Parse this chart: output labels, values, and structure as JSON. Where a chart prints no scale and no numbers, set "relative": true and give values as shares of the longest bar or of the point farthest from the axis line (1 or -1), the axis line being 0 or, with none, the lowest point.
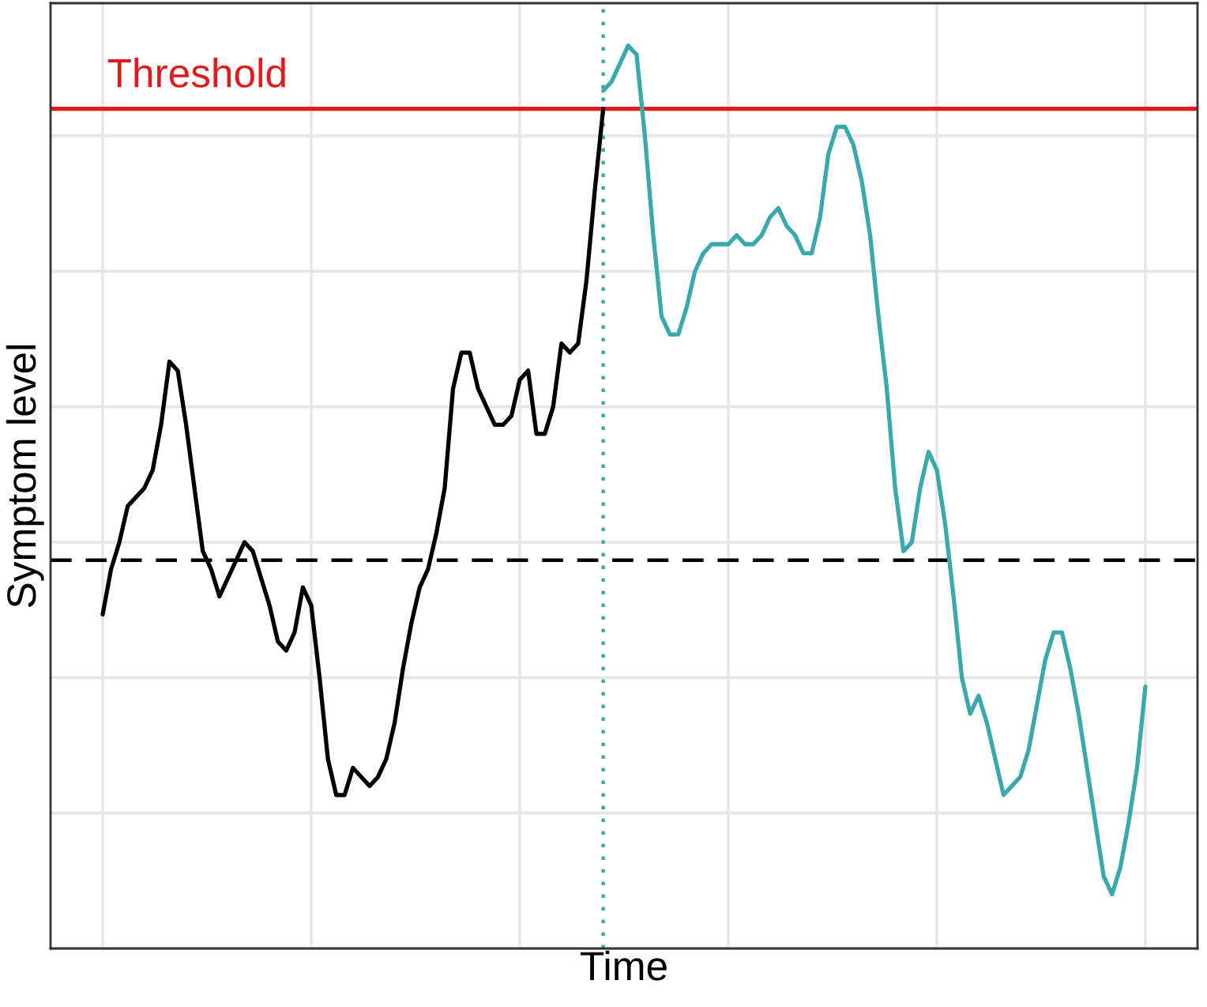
{
  "chart_data": {
    "type": "line",
    "xlabel": "Time",
    "ylabel": "Symptom level",
    "relative": true,
    "categories": [
      null,
      null,
      null,
      null,
      null,
      null,
      null,
      null,
      null,
      null,
      null,
      null,
      null,
      null,
      null,
      null,
      null,
      null,
      null,
      null,
      null,
      null,
      null,
      null,
      null,
      null,
      null,
      null,
      null,
      null,
      null,
      null,
      null,
      null,
      null,
      null,
      null,
      null,
      null,
      null,
      null,
      null,
      null,
      null,
      null,
      null,
      null,
      null,
      null,
      null,
      null,
      null,
      null,
      null,
      null,
      null,
      null,
      null,
      null,
      null,
      null,
      null,
      null,
      null,
      null,
      null,
      null,
      null,
      null,
      null,
      null,
      null,
      null,
      null,
      null,
      null,
      null,
      null,
      null,
      null,
      null,
      null,
      null,
      null,
      null,
      null,
      null,
      null,
      null,
      null,
      null,
      null,
      null,
      null,
      null,
      null,
      null,
      null,
      null,
      null,
      null,
      null,
      null,
      null,
      null,
      null,
      null,
      null,
      null,
      null,
      null,
      null,
      null,
      null,
      null,
      null,
      null,
      null,
      null,
      null,
      null,
      null,
      null,
      null,
      null,
      null
    ],
    "series": [
      {
        "color": "#000000",
        "values": [
          0.37,
          0.42,
          0.45,
          0.49,
          0.5,
          0.51,
          0.53,
          0.58,
          0.65,
          0.64,
          0.58,
          0.51,
          0.44,
          0.42,
          0.39,
          0.41,
          0.43,
          0.45,
          0.44,
          0.41,
          0.38,
          0.34,
          0.33,
          0.35,
          0.4,
          0.38,
          0.3,
          0.21,
          0.17,
          0.17,
          0.2,
          0.19,
          0.18,
          0.19,
          0.21,
          0.25,
          0.31,
          0.36,
          0.4,
          0.42,
          0.46,
          0.51,
          0.62,
          0.66,
          0.66,
          0.62,
          0.6,
          0.58,
          0.58,
          0.59,
          0.63,
          0.64,
          0.57,
          0.57,
          0.6,
          0.67,
          0.66,
          0.67,
          0.74,
          0.84,
          0.93,
          null,
          null,
          null,
          null,
          null,
          null,
          null,
          null,
          null,
          null,
          null,
          null,
          null,
          null,
          null,
          null,
          null,
          null,
          null,
          null,
          null,
          null,
          null,
          null,
          null,
          null,
          null,
          null,
          null,
          null,
          null,
          null,
          null,
          null,
          null,
          null,
          null,
          null,
          null,
          null,
          null,
          null,
          null,
          null,
          null,
          null,
          null,
          null,
          null,
          null,
          null,
          null,
          null,
          null,
          null,
          null,
          null,
          null,
          null,
          null,
          null,
          null,
          null,
          null,
          null
        ]
      },
      {
        "color": "#3aa9ad",
        "values": [
          null,
          null,
          null,
          null,
          null,
          null,
          null,
          null,
          null,
          null,
          null,
          null,
          null,
          null,
          null,
          null,
          null,
          null,
          null,
          null,
          null,
          null,
          null,
          null,
          null,
          null,
          null,
          null,
          null,
          null,
          null,
          null,
          null,
          null,
          null,
          null,
          null,
          null,
          null,
          null,
          null,
          null,
          null,
          null,
          null,
          null,
          null,
          null,
          null,
          null,
          null,
          null,
          null,
          null,
          null,
          null,
          null,
          null,
          null,
          null,
          0.95,
          0.96,
          0.98,
          1.0,
          0.99,
          0.9,
          0.79,
          0.7,
          0.68,
          0.68,
          0.71,
          0.75,
          0.77,
          0.78,
          0.78,
          0.78,
          0.79,
          0.78,
          0.78,
          0.79,
          0.81,
          0.82,
          0.8,
          0.79,
          0.77,
          0.77,
          0.81,
          0.88,
          0.91,
          0.91,
          0.89,
          0.85,
          0.79,
          0.7,
          0.62,
          0.51,
          0.44,
          0.45,
          0.51,
          0.55,
          0.53,
          0.47,
          0.39,
          0.3,
          0.26,
          0.28,
          0.25,
          0.21,
          0.17,
          0.18,
          0.19,
          0.22,
          0.27,
          0.32,
          0.35,
          0.35,
          0.31,
          0.26,
          0.2,
          0.14,
          0.08,
          0.06,
          0.09,
          0.14,
          0.2,
          0.29
        ]
      }
    ],
    "ref_lines": [
      {
        "axis": "y",
        "value": 0.93,
        "label": "Threshold",
        "color": "#e31a1c",
        "line_style": "solid"
      },
      {
        "axis": "y",
        "value": 0.43,
        "color": "#000000",
        "line_style": "dashed"
      }
    ],
    "grid": true,
    "tick_labels": false
  }
}
